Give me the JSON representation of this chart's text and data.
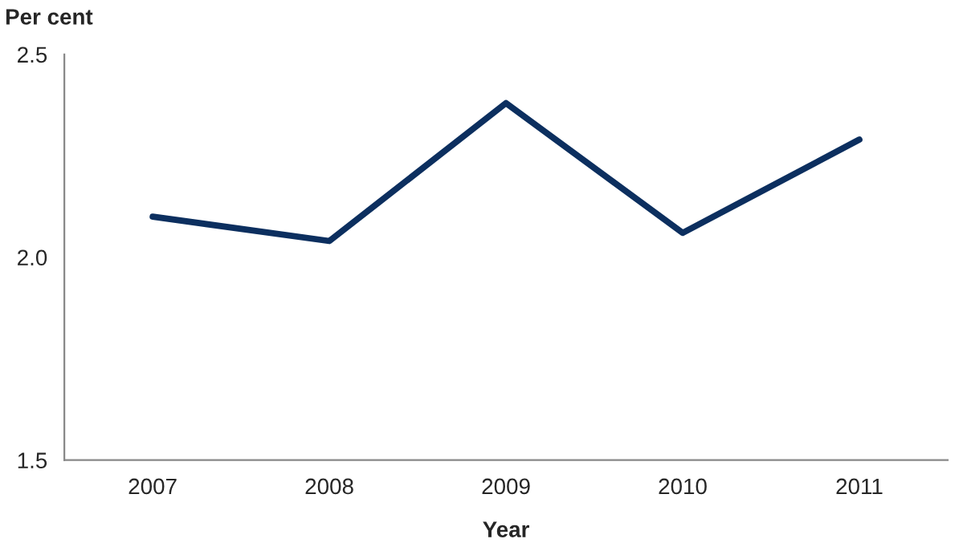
{
  "chart_data": {
    "type": "line",
    "ylabel": "Per cent",
    "xlabel": "Year",
    "categories": [
      "2007",
      "2008",
      "2009",
      "2010",
      "2011"
    ],
    "series": [
      {
        "color": "#0c2f5f",
        "values": [
          2.1,
          2.04,
          2.38,
          2.06,
          2.29
        ]
      }
    ],
    "ylim": [
      1.5,
      2.5
    ],
    "yticks": [
      {
        "value": 1.5,
        "label": "1.5"
      },
      {
        "value": 2.0,
        "label": "2.0"
      },
      {
        "value": 2.5,
        "label": "2.5"
      }
    ],
    "grid": false,
    "marker": "none",
    "line_style": "solid"
  }
}
